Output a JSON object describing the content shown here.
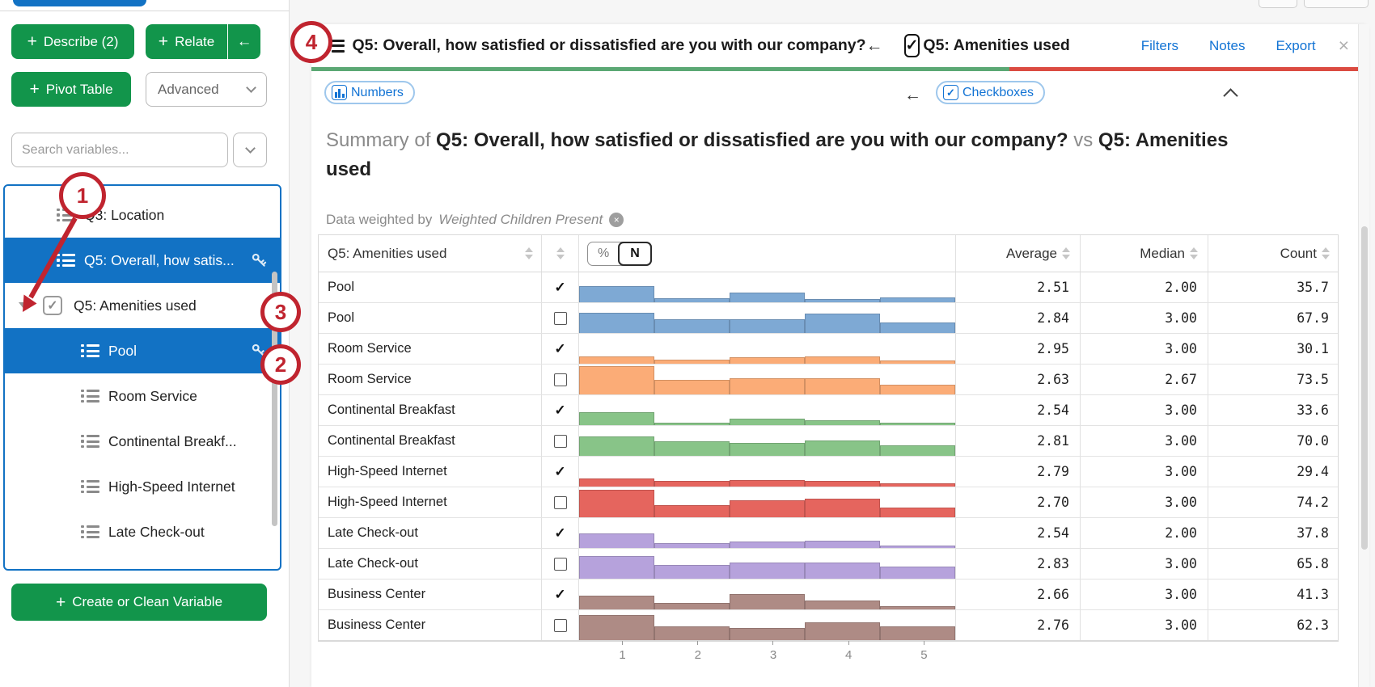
{
  "colors": {
    "button_green": "#12954B",
    "selected_blue": "#1272C4",
    "link_blue": "#1273D4",
    "underline_green": "#5BA874",
    "underline_red": "#DB4B41",
    "annotation_red": "#C0242F"
  },
  "sidebar": {
    "plus": "+",
    "buttons": {
      "describe": "Describe (2)",
      "relate": "Relate",
      "relate_back": "←",
      "pivot": "Pivot Table",
      "advanced": "Advanced"
    },
    "search_placeholder": "Search variables...",
    "variables": [
      {
        "label": "Q3: Location",
        "icon": "list",
        "indent": 1,
        "selected": false
      },
      {
        "label": "Q5: Overall, how satis...",
        "icon": "list",
        "indent": 1,
        "selected": true,
        "key": true
      },
      {
        "label": "Q5: Amenities used",
        "indent": 0,
        "expander": true,
        "checkbox": true,
        "checked": true
      },
      {
        "label": "Pool",
        "icon": "list",
        "indent": 2,
        "selected": true,
        "key": true
      },
      {
        "label": "Room Service",
        "icon": "list",
        "indent": 2
      },
      {
        "label": "Continental Breakf...",
        "icon": "list",
        "indent": 2
      },
      {
        "label": "High-Speed Internet",
        "icon": "list",
        "indent": 2
      },
      {
        "label": "Late Check-out",
        "icon": "list",
        "indent": 2
      }
    ],
    "create_button": "Create or Clean Variable"
  },
  "header": {
    "title": "Q5: Overall, how satisfied or dissatisfied are you with our company?",
    "back_arrow": "←",
    "column_variable": "Q5: Amenities used",
    "check_glyph": "✓",
    "links": [
      "Filters",
      "Notes",
      "Export"
    ],
    "close": "×"
  },
  "pills": {
    "numbers": "Numbers",
    "back_arrow": "←",
    "checkboxes": "Checkboxes",
    "checkboxes_check": "✓"
  },
  "summary": {
    "prefix": "Summary of",
    "row_variable": "Q5: Overall, how satisfied or dissatisfied are you with our company?",
    "connector": "vs",
    "column_variable": "Q5: Amenities used"
  },
  "weight": {
    "prefix": "Data weighted by",
    "name": "Weighted Children Present",
    "remove_glyph": "×"
  },
  "table": {
    "column_header": "Q5: Amenities used",
    "toggle": {
      "options": [
        "%",
        "N"
      ],
      "selected": "N"
    },
    "headers": {
      "average": "Average",
      "median": "Median",
      "count": "Count"
    },
    "check_glyph": "✓",
    "axis": [
      "1",
      "2",
      "3",
      "4",
      "5"
    ],
    "rows": [
      {
        "label": "Pool",
        "checked": true,
        "color": "#7EA9D4",
        "bars": [
          0.55,
          0.14,
          0.32,
          0.12,
          0.16
        ],
        "average": "2.51",
        "median": "2.00",
        "count": "35.7"
      },
      {
        "label": "Pool",
        "checked": false,
        "color": "#7EA9D4",
        "bars": [
          0.68,
          0.45,
          0.45,
          0.66,
          0.34
        ],
        "average": "2.84",
        "median": "3.00",
        "count": "67.9"
      },
      {
        "label": "Room Service",
        "checked": true,
        "color": "#FBAC77",
        "bars": [
          0.24,
          0.14,
          0.22,
          0.25,
          0.12
        ],
        "average": "2.95",
        "median": "3.00",
        "count": "30.1"
      },
      {
        "label": "Room Service",
        "checked": false,
        "color": "#FBAC77",
        "bars": [
          0.95,
          0.48,
          0.55,
          0.55,
          0.33
        ],
        "average": "2.63",
        "median": "2.67",
        "count": "73.5"
      },
      {
        "label": "Continental Breakfast",
        "checked": true,
        "color": "#88C488",
        "bars": [
          0.43,
          0.08,
          0.22,
          0.17,
          0.08
        ],
        "average": "2.54",
        "median": "3.00",
        "count": "33.6"
      },
      {
        "label": "Continental Breakfast",
        "checked": false,
        "color": "#88C488",
        "bars": [
          0.64,
          0.48,
          0.43,
          0.52,
          0.34
        ],
        "average": "2.81",
        "median": "3.00",
        "count": "70.0"
      },
      {
        "label": "High-Speed Internet",
        "checked": true,
        "color": "#E5655E",
        "bars": [
          0.28,
          0.2,
          0.23,
          0.18,
          0.11
        ],
        "average": "2.79",
        "median": "3.00",
        "count": "29.4"
      },
      {
        "label": "High-Speed Internet",
        "checked": false,
        "color": "#E5655E",
        "bars": [
          0.92,
          0.41,
          0.56,
          0.62,
          0.32
        ],
        "average": "2.70",
        "median": "3.00",
        "count": "74.2"
      },
      {
        "label": "Late Check-out",
        "checked": true,
        "color": "#B6A2DC",
        "bars": [
          0.5,
          0.15,
          0.23,
          0.25,
          0.08
        ],
        "average": "2.54",
        "median": "2.00",
        "count": "37.8"
      },
      {
        "label": "Late Check-out",
        "checked": false,
        "color": "#B6A2DC",
        "bars": [
          0.75,
          0.45,
          0.55,
          0.55,
          0.4
        ],
        "average": "2.83",
        "median": "3.00",
        "count": "65.8"
      },
      {
        "label": "Business Center",
        "checked": true,
        "color": "#AE8B85",
        "bars": [
          0.45,
          0.22,
          0.52,
          0.3,
          0.12
        ],
        "average": "2.66",
        "median": "3.00",
        "count": "41.3"
      },
      {
        "label": "Business Center",
        "checked": false,
        "color": "#AE8B85",
        "bars": [
          0.85,
          0.45,
          0.4,
          0.6,
          0.45
        ],
        "average": "2.76",
        "median": "3.00",
        "count": "62.3"
      }
    ]
  },
  "annotations": {
    "steps": [
      "1",
      "2",
      "3",
      "4"
    ]
  },
  "chart_data": {
    "type": "bar",
    "note": "small-multiple histograms, one per table row, x = satisfaction 1-5, heights are fractions of row height",
    "x": [
      1,
      2,
      3,
      4,
      5
    ],
    "series": [
      {
        "name": "Pool (checked)",
        "values": [
          0.55,
          0.14,
          0.32,
          0.12,
          0.16
        ]
      },
      {
        "name": "Pool (unchecked)",
        "values": [
          0.68,
          0.45,
          0.45,
          0.66,
          0.34
        ]
      },
      {
        "name": "Room Service (checked)",
        "values": [
          0.24,
          0.14,
          0.22,
          0.25,
          0.12
        ]
      },
      {
        "name": "Room Service (unchecked)",
        "values": [
          0.95,
          0.48,
          0.55,
          0.55,
          0.33
        ]
      },
      {
        "name": "Continental Breakfast (checked)",
        "values": [
          0.43,
          0.08,
          0.22,
          0.17,
          0.08
        ]
      },
      {
        "name": "Continental Breakfast (unchecked)",
        "values": [
          0.64,
          0.48,
          0.43,
          0.52,
          0.34
        ]
      },
      {
        "name": "High-Speed Internet (checked)",
        "values": [
          0.28,
          0.2,
          0.23,
          0.18,
          0.11
        ]
      },
      {
        "name": "High-Speed Internet (unchecked)",
        "values": [
          0.92,
          0.41,
          0.56,
          0.62,
          0.32
        ]
      },
      {
        "name": "Late Check-out (checked)",
        "values": [
          0.5,
          0.15,
          0.23,
          0.25,
          0.08
        ]
      },
      {
        "name": "Late Check-out (unchecked)",
        "values": [
          0.75,
          0.45,
          0.55,
          0.55,
          0.4
        ]
      },
      {
        "name": "Business Center (checked)",
        "values": [
          0.45,
          0.22,
          0.52,
          0.3,
          0.12
        ]
      },
      {
        "name": "Business Center (unchecked)",
        "values": [
          0.85,
          0.45,
          0.4,
          0.6,
          0.45
        ]
      }
    ],
    "xlabel": "",
    "ylabel": "",
    "xticks": [
      "1",
      "2",
      "3",
      "4",
      "5"
    ]
  }
}
